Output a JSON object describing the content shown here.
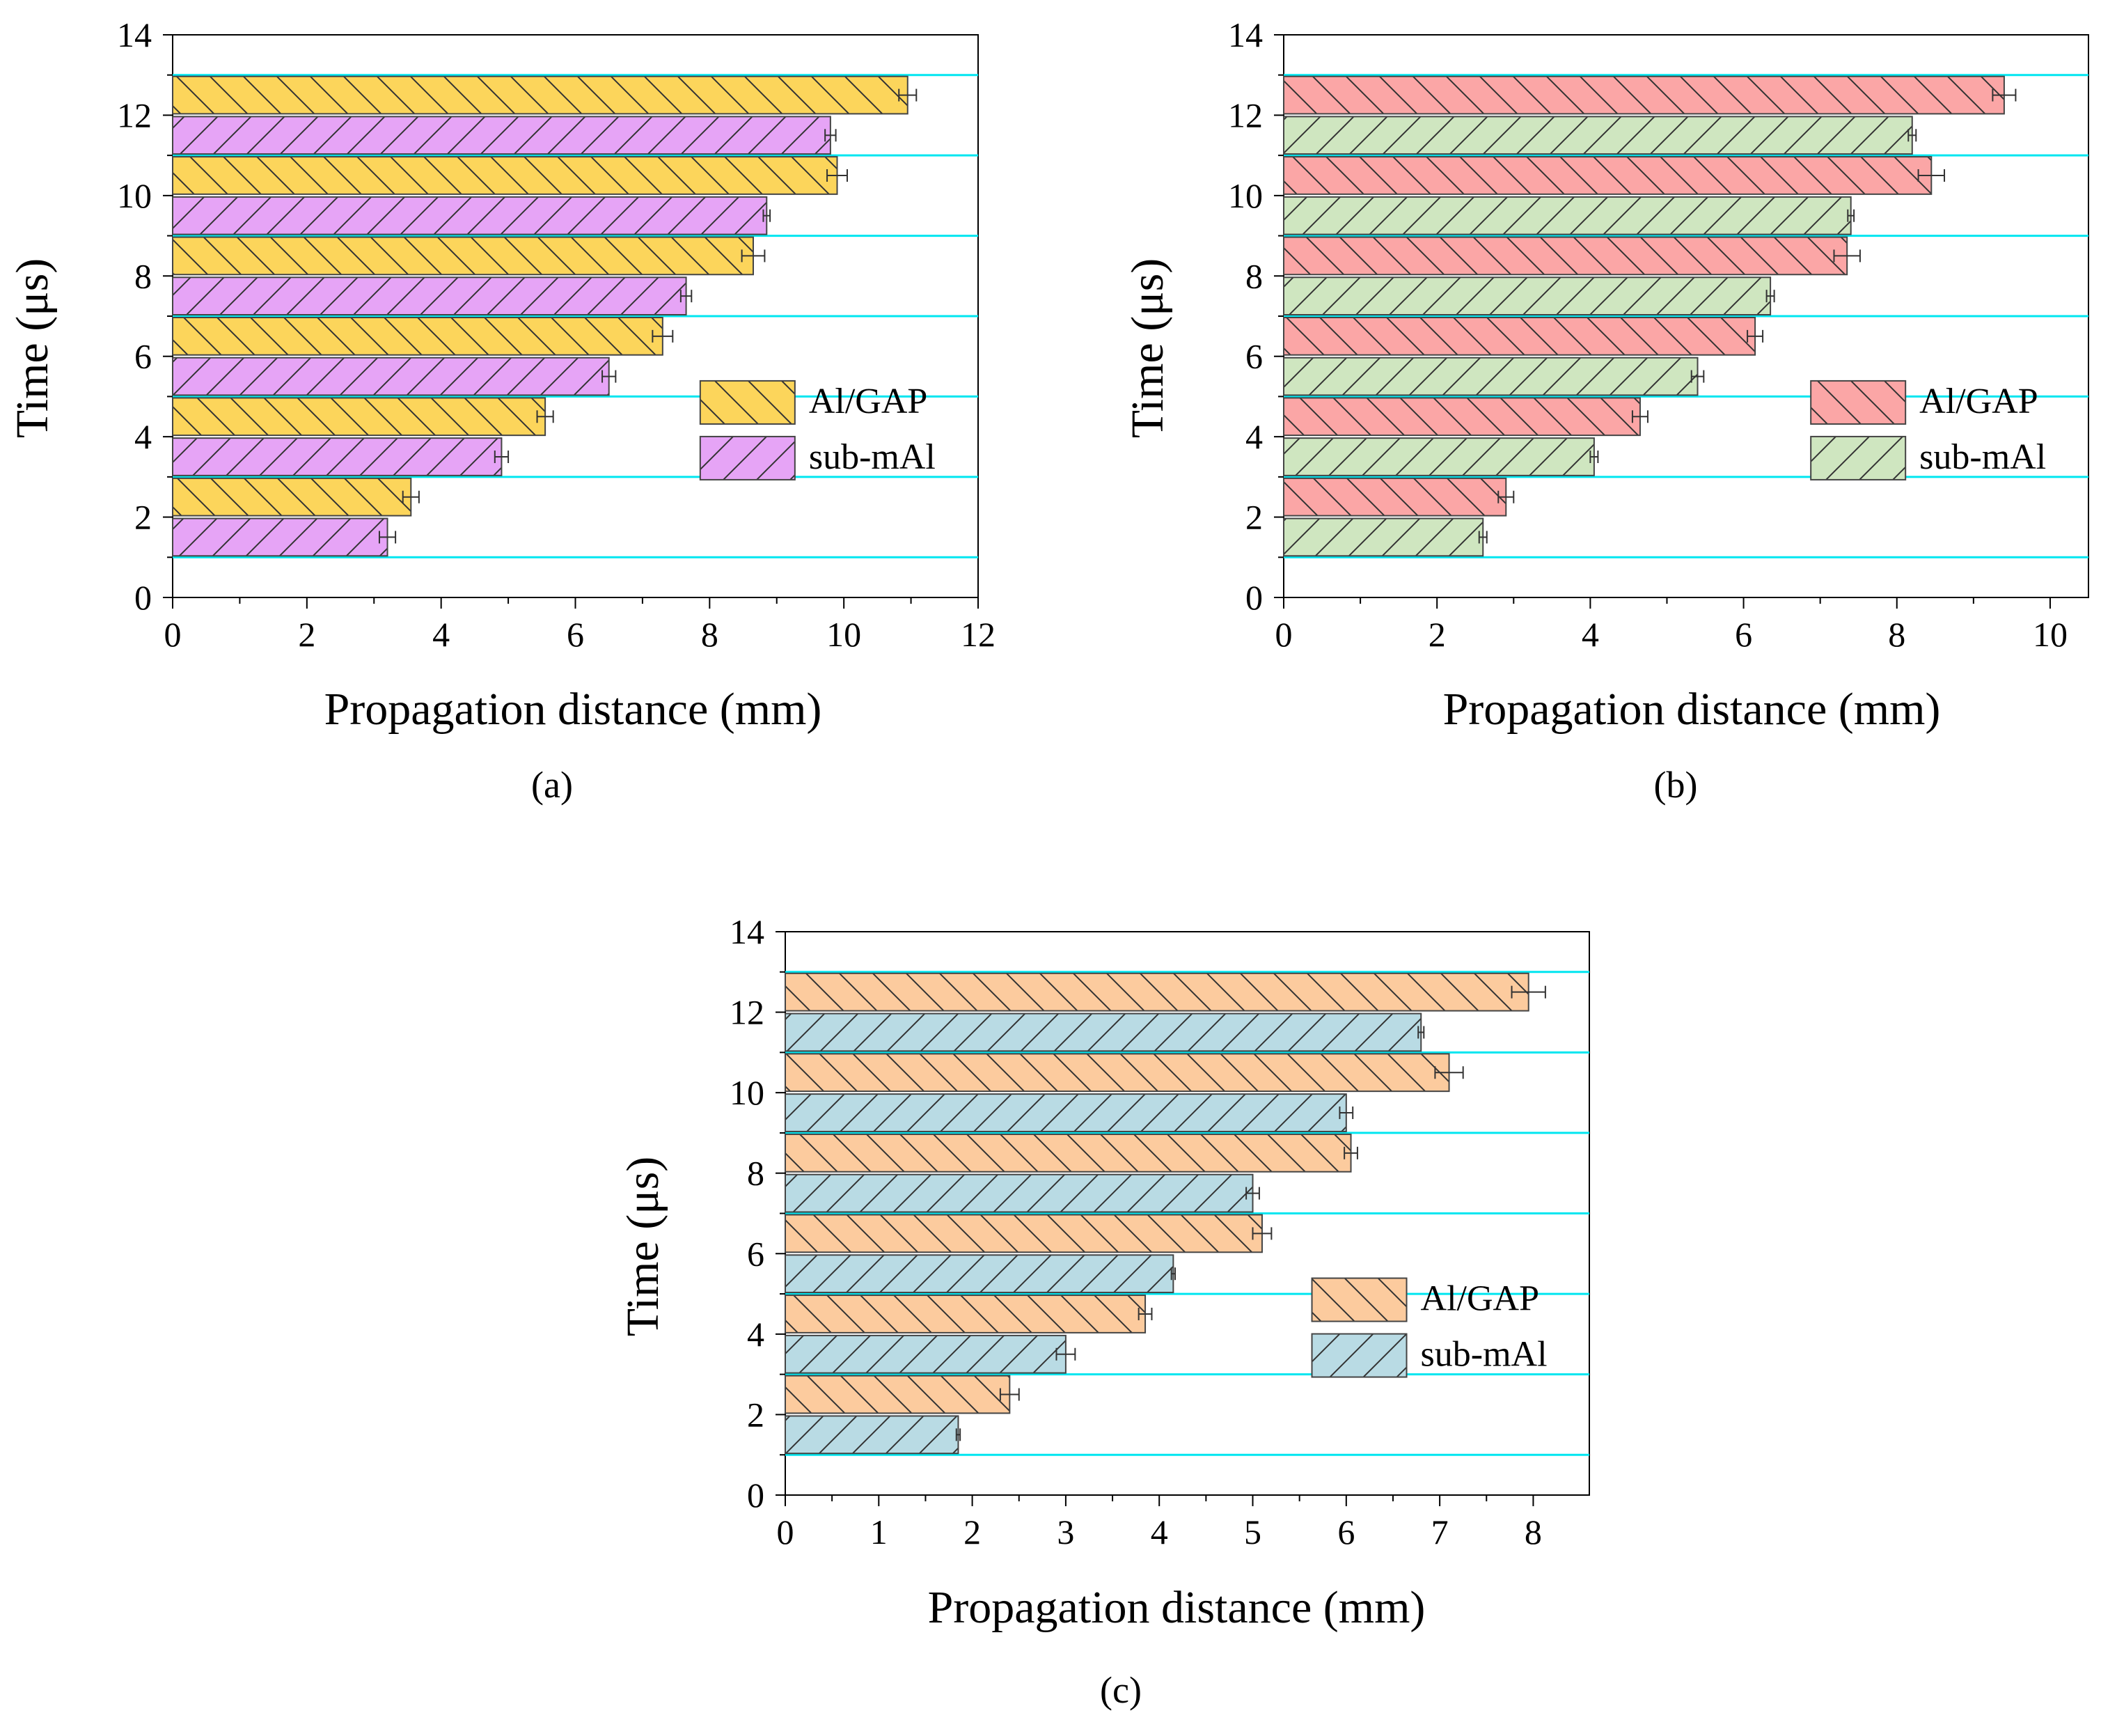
{
  "chart_data": [
    {
      "type": "bar",
      "orientation": "horizontal",
      "panel_label": "(a)",
      "xlabel": "Propagation distance (mm)",
      "ylabel": "Time (μs)",
      "xlim": [
        0,
        12
      ],
      "ylim": [
        0,
        14
      ],
      "xticks": [
        "0",
        "2",
        "4",
        "6",
        "8",
        "10",
        "12"
      ],
      "yticks": [
        "0",
        "2",
        "4",
        "6",
        "8",
        "10",
        "12",
        "14"
      ],
      "categories": [
        2,
        4,
        6,
        8,
        10,
        12
      ],
      "series": [
        {
          "name": "Al/GAP",
          "color": "#fcd55b",
          "hatch": "back-slash",
          "values": [
            3.55,
            5.55,
            7.3,
            8.65,
            9.9,
            10.95
          ],
          "errors": [
            0.12,
            0.12,
            0.15,
            0.17,
            0.15,
            0.13
          ]
        },
        {
          "name": "sub-mAl",
          "color": "#e6a4f6",
          "hatch": "slash",
          "values": [
            3.2,
            4.9,
            6.5,
            7.65,
            8.85,
            9.8
          ],
          "errors": [
            0.12,
            0.1,
            0.1,
            0.08,
            0.05,
            0.08
          ]
        }
      ],
      "legend_position": "right-lower"
    },
    {
      "type": "bar",
      "orientation": "horizontal",
      "panel_label": "(b)",
      "xlabel": "Propagation distance (mm)",
      "ylabel": "Time (μs)",
      "xlim": [
        0,
        10.5
      ],
      "ylim": [
        0,
        14
      ],
      "xticks": [
        "0",
        "2",
        "4",
        "6",
        "8",
        "10"
      ],
      "yticks": [
        "0",
        "2",
        "4",
        "6",
        "8",
        "10",
        "12",
        "14"
      ],
      "categories": [
        2,
        4,
        6,
        8,
        10,
        12
      ],
      "series": [
        {
          "name": "Al/GAP",
          "color": "#fba6a6",
          "hatch": "back-slash",
          "values": [
            2.9,
            4.65,
            6.15,
            7.35,
            8.45,
            9.4
          ],
          "errors": [
            0.1,
            0.1,
            0.1,
            0.17,
            0.17,
            0.15
          ]
        },
        {
          "name": "sub-mAl",
          "color": "#cfe6c0",
          "hatch": "slash",
          "values": [
            2.6,
            4.05,
            5.4,
            6.35,
            7.4,
            8.2
          ],
          "errors": [
            0.05,
            0.05,
            0.08,
            0.05,
            0.04,
            0.05
          ]
        }
      ],
      "legend_position": "right-lower"
    },
    {
      "type": "bar",
      "orientation": "horizontal",
      "panel_label": "(c)",
      "xlabel": "Propagation distance (mm)",
      "ylabel": "Time (μs)",
      "xlim": [
        0,
        8.6
      ],
      "ylim": [
        0,
        14
      ],
      "xticks": [
        "0",
        "1",
        "2",
        "3",
        "4",
        "5",
        "6",
        "7",
        "8"
      ],
      "yticks": [
        "0",
        "2",
        "4",
        "6",
        "8",
        "10",
        "12",
        "14"
      ],
      "categories": [
        2,
        4,
        6,
        8,
        10,
        12
      ],
      "series": [
        {
          "name": "Al/GAP",
          "color": "#fccb9e",
          "hatch": "back-slash",
          "values": [
            2.4,
            3.85,
            5.1,
            6.05,
            7.1,
            7.95
          ],
          "errors": [
            0.1,
            0.07,
            0.1,
            0.07,
            0.15,
            0.18
          ]
        },
        {
          "name": "sub-mAl",
          "color": "#b9dbe4",
          "hatch": "slash",
          "values": [
            1.85,
            3.0,
            4.15,
            5.0,
            6.0,
            6.8
          ],
          "errors": [
            0.02,
            0.1,
            0.02,
            0.07,
            0.07,
            0.03
          ]
        }
      ],
      "legend_position": "right-lower"
    }
  ],
  "styles": {
    "gridline_color": "#00e6f0",
    "axis_color": "#000000",
    "bar_edge_color": "#444444"
  }
}
